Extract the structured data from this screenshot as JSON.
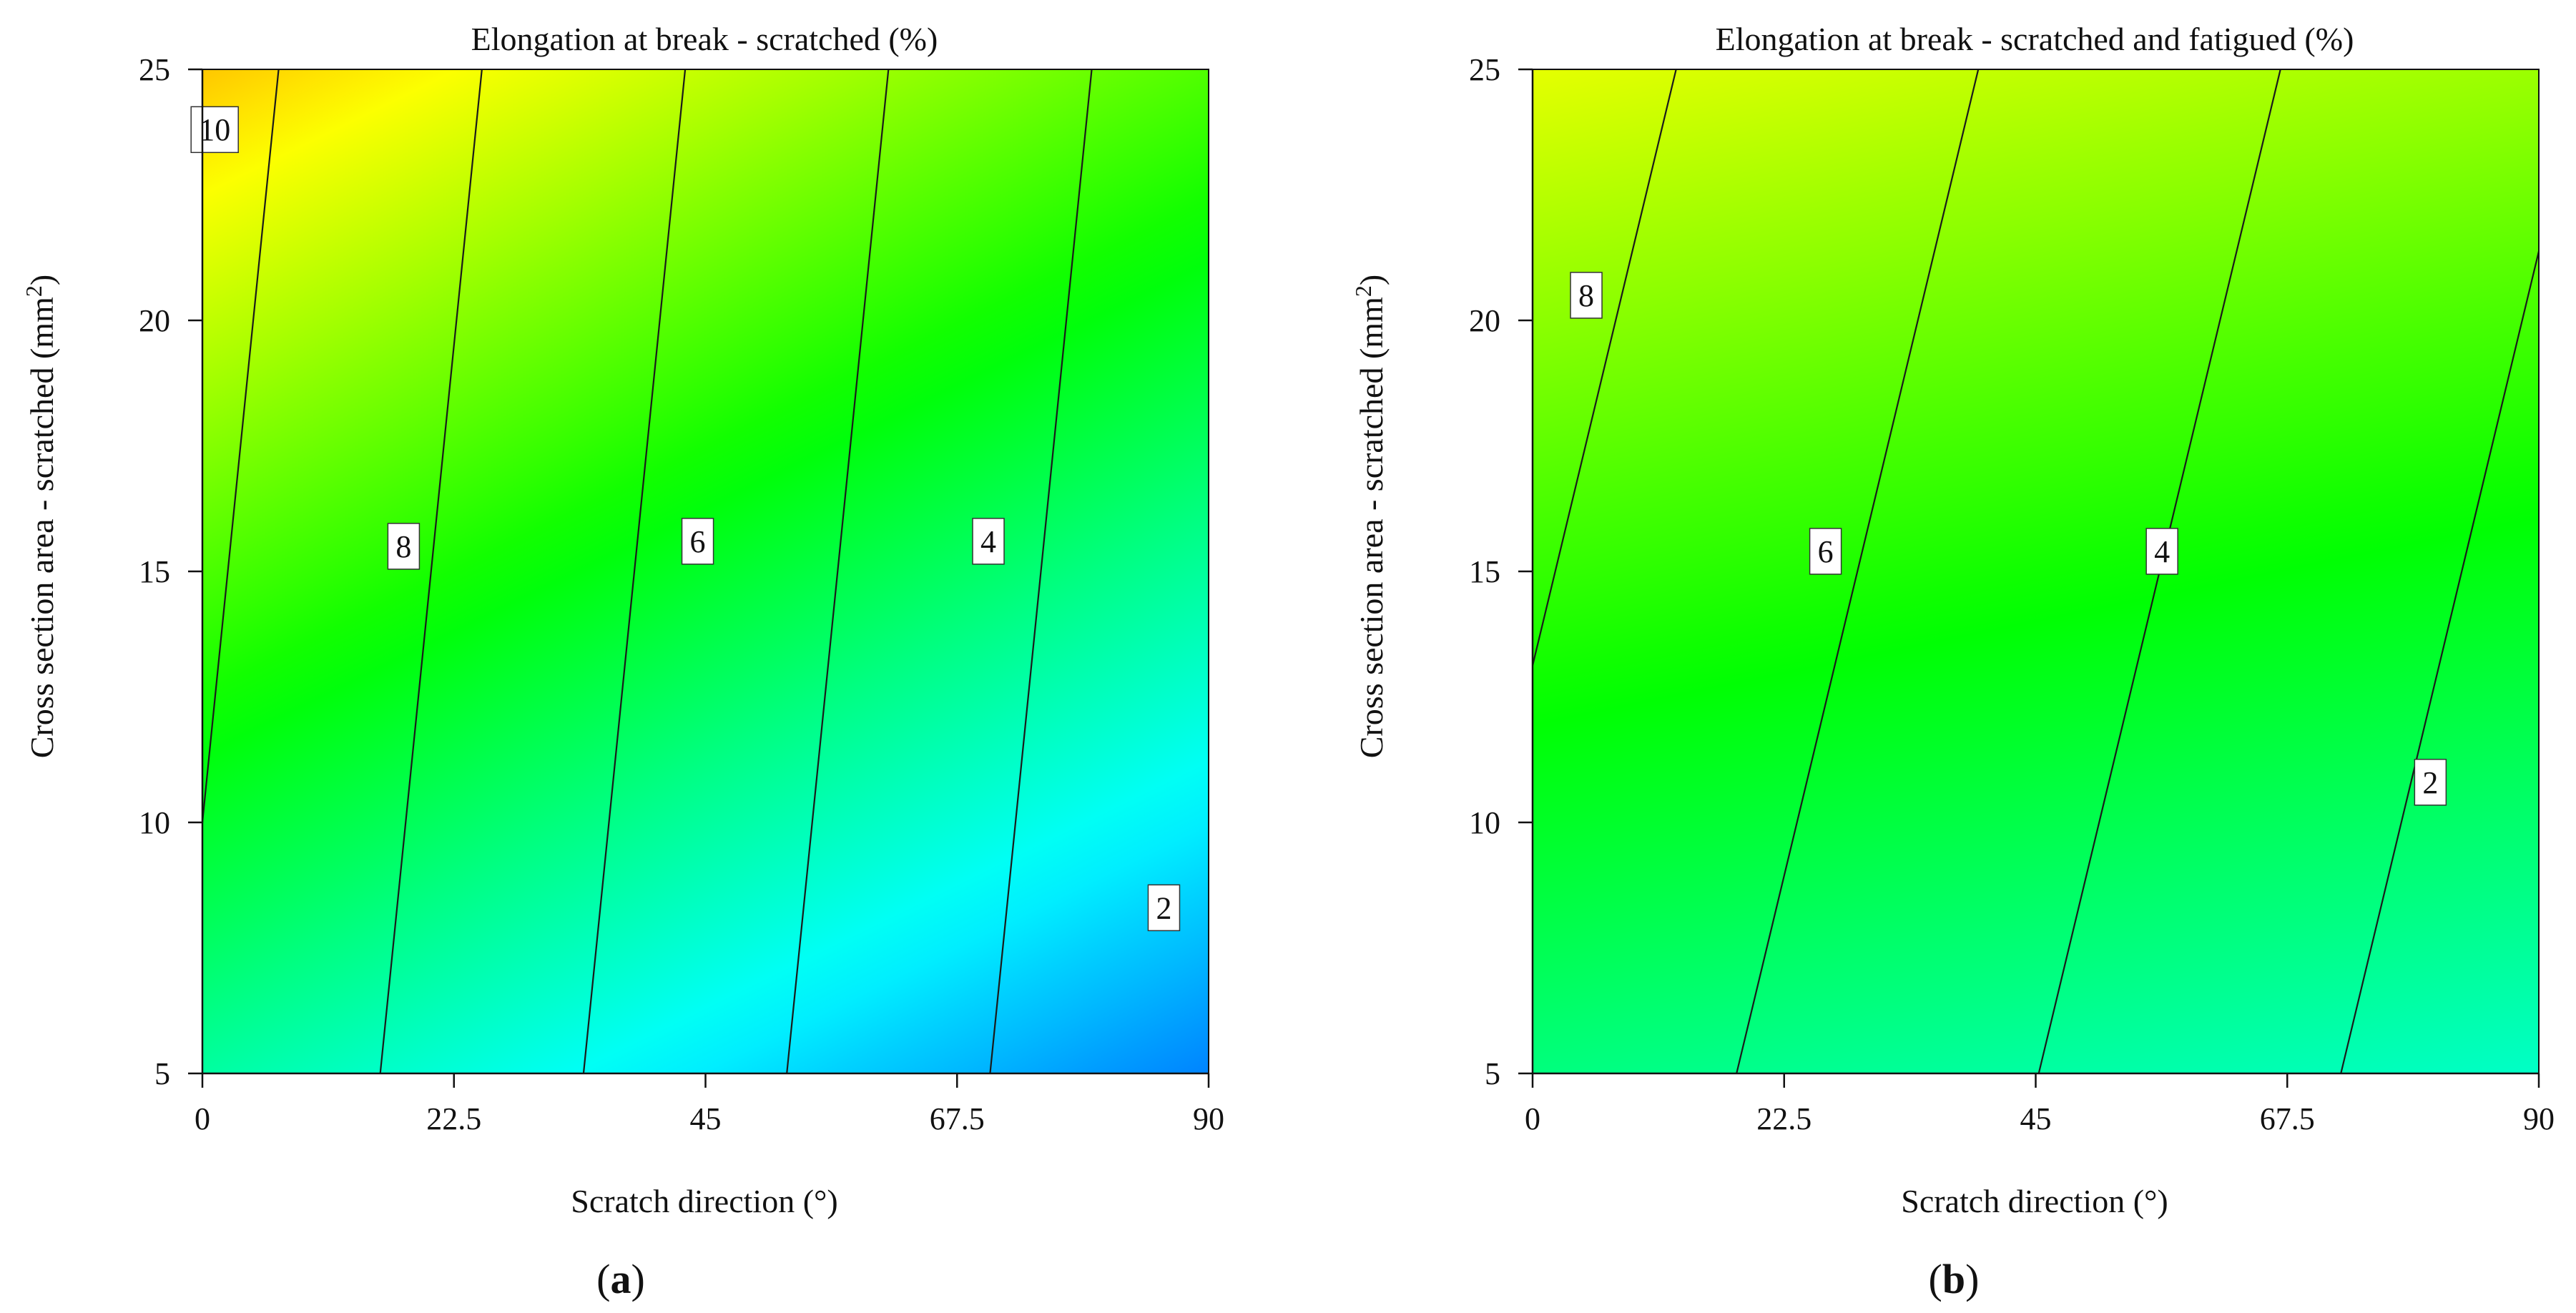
{
  "panels": [
    {
      "panel_label": "(a)",
      "panel_letter": "a",
      "title": "Elongation at break - scratched (%)",
      "xlabel": "Scratch direction (°)",
      "ylabel": "Cross section area - scratched (mm²)",
      "ylabel_base": "Cross section area - scratched (mm",
      "ylabel_sup": "2",
      "ylabel_close": ")"
    },
    {
      "panel_label": "(b)",
      "panel_letter": "b",
      "title": "Elongation at break - scratched and fatigued (%)",
      "xlabel": "Scratch direction (°)",
      "ylabel": "Cross section area - scratched (mm²)",
      "ylabel_base": "Cross section area - scratched (mm",
      "ylabel_sup": "2",
      "ylabel_close": ")"
    }
  ],
  "chart_data": [
    {
      "type": "contour",
      "title": "Elongation at break - scratched (%)",
      "xlabel": "Scratch direction (°)",
      "ylabel": "Cross section area - scratched (mm²)",
      "xlim": [
        0,
        90
      ],
      "ylim": [
        5,
        25
      ],
      "x_ticks": [
        0,
        22.5,
        45,
        67.5,
        90
      ],
      "x_tick_labels": [
        "0",
        "22.5",
        "45",
        "67.5",
        "90"
      ],
      "y_ticks": [
        5,
        10,
        15,
        20,
        25
      ],
      "y_tick_labels": [
        "5",
        "10",
        "15",
        "20",
        "25"
      ],
      "colormap": [
        "#0018ff",
        "#00ffff",
        "#00ff00",
        "#ffff00",
        "#ff0000"
      ],
      "color_range": [
        0.6,
        10.8
      ],
      "model": {
        "intercept": 9.5,
        "x_coef": -0.11,
        "y_coef": 0.05
      },
      "contours": [
        {
          "level": 10,
          "label": "10",
          "label_x": 1.1,
          "label_y": 23.8
        },
        {
          "level": 8,
          "label": "8",
          "label_x": 18.0,
          "label_y": 15.5
        },
        {
          "level": 6,
          "label": "6",
          "label_x": 44.3,
          "label_y": 15.6
        },
        {
          "level": 4,
          "label": "4",
          "label_x": 70.3,
          "label_y": 15.6
        },
        {
          "level": 2,
          "label": "2",
          "label_x": 86.0,
          "label_y": 8.3
        }
      ]
    },
    {
      "type": "contour",
      "title": "Elongation at break - scratched and fatigued (%)",
      "xlabel": "Scratch direction (°)",
      "ylabel": "Cross section area - scratched (mm²)",
      "xlim": [
        0,
        90
      ],
      "ylim": [
        5,
        25
      ],
      "x_ticks": [
        0,
        22.5,
        45,
        67.5,
        90
      ],
      "x_tick_labels": [
        "0",
        "22.5",
        "45",
        "67.5",
        "90"
      ],
      "y_ticks": [
        5,
        10,
        15,
        20,
        25
      ],
      "y_tick_labels": [
        "5",
        "10",
        "15",
        "20",
        "25"
      ],
      "colormap": [
        "#0018ff",
        "#00ffff",
        "#00ff00",
        "#ffff00",
        "#ff0000"
      ],
      "color_range": [
        0.6,
        8.8
      ],
      "model": {
        "intercept": 6.95,
        "x_coef": -0.074,
        "y_coef": 0.08
      },
      "contours": [
        {
          "level": 8,
          "label": "8",
          "label_x": 4.8,
          "label_y": 20.5
        },
        {
          "level": 6,
          "label": "6",
          "label_x": 26.2,
          "label_y": 15.4
        },
        {
          "level": 4,
          "label": "4",
          "label_x": 56.3,
          "label_y": 15.4
        },
        {
          "level": 2,
          "label": "2",
          "label_x": 80.3,
          "label_y": 10.8
        }
      ]
    }
  ]
}
